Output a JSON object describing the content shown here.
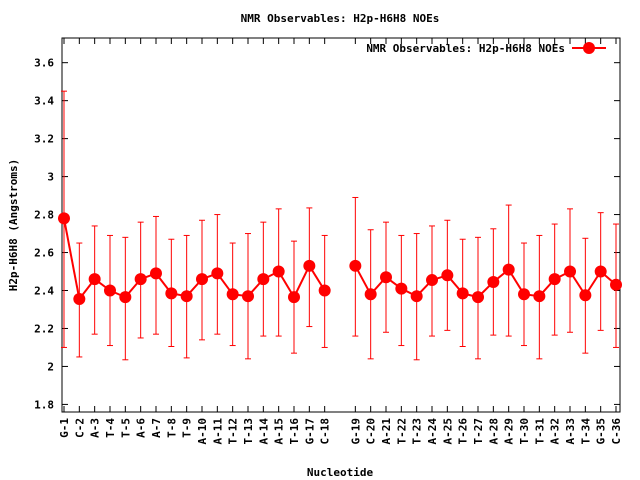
{
  "chart_data": {
    "type": "line",
    "title": "NMR Observables: H2p-H6H8 NOEs",
    "xlabel": "Nucleotide",
    "ylabel": "H2p-H6H8 (Angstroms)",
    "xlim": [
      0.87,
      37.26
    ],
    "ylim": [
      1.76,
      3.73
    ],
    "yticks": [
      "1.8",
      "2",
      "2.2",
      "2.4",
      "2.6",
      "2.8",
      "3",
      "3.2",
      "3.4",
      "3.6"
    ],
    "ytick_values": [
      1.8,
      2.0,
      2.2,
      2.4,
      2.6,
      2.8,
      3.0,
      3.2,
      3.4,
      3.6
    ],
    "grid": false,
    "legend": {
      "position": "top-right",
      "label": "NMR Observables: H2p-H6H8 NOEs"
    },
    "series": [
      {
        "name": "NMR Observables: H2p-H6H8 NOEs",
        "color": "#ff0000",
        "style": "linespoints with errorbars",
        "points": [
          {
            "label": "G-1",
            "x": 1,
            "y": 2.78,
            "lo": 2.1,
            "hi": 3.45
          },
          {
            "label": "C-2",
            "x": 2,
            "y": 2.355,
            "lo": 2.05,
            "hi": 2.65
          },
          {
            "label": "A-3",
            "x": 3,
            "y": 2.46,
            "lo": 2.17,
            "hi": 2.74
          },
          {
            "label": "T-4",
            "x": 4,
            "y": 2.4,
            "lo": 2.11,
            "hi": 2.69
          },
          {
            "label": "T-5",
            "x": 5,
            "y": 2.365,
            "lo": 2.035,
            "hi": 2.68
          },
          {
            "label": "A-6",
            "x": 6,
            "y": 2.46,
            "lo": 2.15,
            "hi": 2.76
          },
          {
            "label": "A-7",
            "x": 7,
            "y": 2.49,
            "lo": 2.17,
            "hi": 2.79
          },
          {
            "label": "T-8",
            "x": 8,
            "y": 2.385,
            "lo": 2.105,
            "hi": 2.67
          },
          {
            "label": "T-9",
            "x": 9,
            "y": 2.37,
            "lo": 2.045,
            "hi": 2.69
          },
          {
            "label": "A-10",
            "x": 10,
            "y": 2.46,
            "lo": 2.14,
            "hi": 2.77
          },
          {
            "label": "A-11",
            "x": 11,
            "y": 2.49,
            "lo": 2.17,
            "hi": 2.8
          },
          {
            "label": "T-12",
            "x": 12,
            "y": 2.38,
            "lo": 2.11,
            "hi": 2.65
          },
          {
            "label": "T-13",
            "x": 13,
            "y": 2.37,
            "lo": 2.04,
            "hi": 2.7
          },
          {
            "label": "A-14",
            "x": 14,
            "y": 2.46,
            "lo": 2.16,
            "hi": 2.76
          },
          {
            "label": "A-15",
            "x": 15,
            "y": 2.5,
            "lo": 2.16,
            "hi": 2.83
          },
          {
            "label": "T-16",
            "x": 16,
            "y": 2.365,
            "lo": 2.07,
            "hi": 2.66
          },
          {
            "label": "G-17",
            "x": 17,
            "y": 2.53,
            "lo": 2.21,
            "hi": 2.835
          },
          {
            "label": "C-18",
            "x": 18,
            "y": 2.4,
            "lo": 2.1,
            "hi": 2.69
          },
          {
            "label": "G-19",
            "x": 20,
            "y": 2.53,
            "lo": 2.16,
            "hi": 2.89
          },
          {
            "label": "C-20",
            "x": 21,
            "y": 2.38,
            "lo": 2.04,
            "hi": 2.72
          },
          {
            "label": "A-21",
            "x": 22,
            "y": 2.47,
            "lo": 2.18,
            "hi": 2.76
          },
          {
            "label": "T-22",
            "x": 23,
            "y": 2.41,
            "lo": 2.11,
            "hi": 2.69
          },
          {
            "label": "T-23",
            "x": 24,
            "y": 2.37,
            "lo": 2.035,
            "hi": 2.7
          },
          {
            "label": "A-24",
            "x": 25,
            "y": 2.455,
            "lo": 2.16,
            "hi": 2.74
          },
          {
            "label": "A-25",
            "x": 26,
            "y": 2.48,
            "lo": 2.19,
            "hi": 2.77
          },
          {
            "label": "T-26",
            "x": 27,
            "y": 2.385,
            "lo": 2.105,
            "hi": 2.67
          },
          {
            "label": "T-27",
            "x": 28,
            "y": 2.365,
            "lo": 2.04,
            "hi": 2.68
          },
          {
            "label": "A-28",
            "x": 29,
            "y": 2.445,
            "lo": 2.165,
            "hi": 2.725
          },
          {
            "label": "A-29",
            "x": 30,
            "y": 2.51,
            "lo": 2.16,
            "hi": 2.85
          },
          {
            "label": "T-30",
            "x": 31,
            "y": 2.38,
            "lo": 2.11,
            "hi": 2.65
          },
          {
            "label": "T-31",
            "x": 32,
            "y": 2.37,
            "lo": 2.04,
            "hi": 2.69
          },
          {
            "label": "A-32",
            "x": 33,
            "y": 2.46,
            "lo": 2.165,
            "hi": 2.75
          },
          {
            "label": "A-33",
            "x": 34,
            "y": 2.5,
            "lo": 2.18,
            "hi": 2.83
          },
          {
            "label": "T-34",
            "x": 35,
            "y": 2.375,
            "lo": 2.07,
            "hi": 2.675
          },
          {
            "label": "G-35",
            "x": 36,
            "y": 2.5,
            "lo": 2.19,
            "hi": 2.81
          },
          {
            "label": "C-36",
            "x": 37,
            "y": 2.43,
            "lo": 2.1,
            "hi": 2.75
          }
        ]
      }
    ]
  }
}
